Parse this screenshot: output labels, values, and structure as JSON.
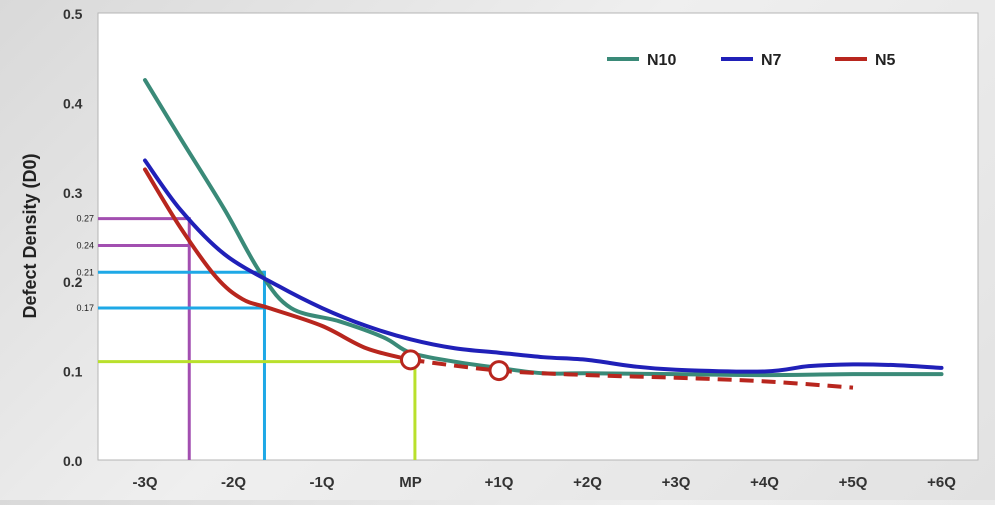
{
  "chart_data": {
    "type": "line",
    "title": "",
    "ylabel": "Defect Density (D0)",
    "xlabel": "",
    "x_categories": [
      "-3Q",
      "-2Q",
      "-1Q",
      "MP",
      "+1Q",
      "+2Q",
      "+3Q",
      "+4Q",
      "+5Q",
      "+6Q"
    ],
    "ylim": [
      0.0,
      0.5
    ],
    "y_ticks": [
      "0.0",
      "0.1",
      "0.2",
      "0.3",
      "0.4",
      "0.5"
    ],
    "grid": false,
    "legend_position": "top-right",
    "series": [
      {
        "name": "N10",
        "color": "#3a8a78",
        "points": [
          [
            -3.0,
            0.425
          ],
          [
            -2.6,
            0.36
          ],
          [
            -2.1,
            0.28
          ],
          [
            -1.7,
            0.21
          ],
          [
            -1.35,
            0.17
          ],
          [
            -0.8,
            0.155
          ],
          [
            -0.3,
            0.137
          ],
          [
            0.0,
            0.12
          ],
          [
            0.5,
            0.11
          ],
          [
            1.0,
            0.103
          ],
          [
            1.5,
            0.097
          ],
          [
            2.0,
            0.097
          ],
          [
            3.0,
            0.096
          ],
          [
            4.0,
            0.095
          ],
          [
            5.0,
            0.096
          ],
          [
            6.0,
            0.096
          ]
        ]
      },
      {
        "name": "N7",
        "color": "#2020b8",
        "points": [
          [
            -3.0,
            0.335
          ],
          [
            -2.6,
            0.28
          ],
          [
            -2.1,
            0.23
          ],
          [
            -1.5,
            0.195
          ],
          [
            -1.0,
            0.17
          ],
          [
            -0.5,
            0.15
          ],
          [
            0.0,
            0.135
          ],
          [
            0.5,
            0.125
          ],
          [
            1.0,
            0.12
          ],
          [
            1.5,
            0.115
          ],
          [
            2.0,
            0.112
          ],
          [
            2.5,
            0.105
          ],
          [
            3.0,
            0.101
          ],
          [
            4.0,
            0.099
          ],
          [
            4.5,
            0.105
          ],
          [
            5.0,
            0.107
          ],
          [
            5.5,
            0.106
          ],
          [
            6.0,
            0.103
          ]
        ]
      },
      {
        "name": "N5",
        "color": "#b8261e",
        "points": [
          [
            -3.0,
            0.325
          ],
          [
            -2.6,
            0.26
          ],
          [
            -2.2,
            0.205
          ],
          [
            -1.9,
            0.18
          ],
          [
            -1.6,
            0.17
          ],
          [
            -1.0,
            0.15
          ],
          [
            -0.5,
            0.125
          ],
          [
            0.0,
            0.112
          ]
        ],
        "projected_points": [
          [
            0.0,
            0.112
          ],
          [
            1.0,
            0.1
          ],
          [
            2.0,
            0.095
          ],
          [
            3.0,
            0.092
          ],
          [
            4.0,
            0.088
          ],
          [
            5.0,
            0.081
          ]
        ],
        "markers": [
          [
            0.0,
            0.112
          ],
          [
            1.0,
            0.1
          ]
        ]
      }
    ],
    "annotations": {
      "tick_labels": [
        "0.27",
        "0.24",
        "0.21",
        "0.17"
      ],
      "guides": [
        {
          "color": "#a24fb0",
          "x": -2.5,
          "ys": [
            0.27,
            0.24
          ],
          "labels": [
            "0.27",
            "0.24"
          ]
        },
        {
          "color": "#1ea8e6",
          "x": -1.65,
          "ys": [
            0.21,
            0.17
          ],
          "labels": [
            "0.21",
            "0.17"
          ]
        },
        {
          "color": "#b9e02c",
          "x": 0.05,
          "ys": [
            0.11
          ],
          "labels": [
            ""
          ]
        }
      ]
    }
  }
}
